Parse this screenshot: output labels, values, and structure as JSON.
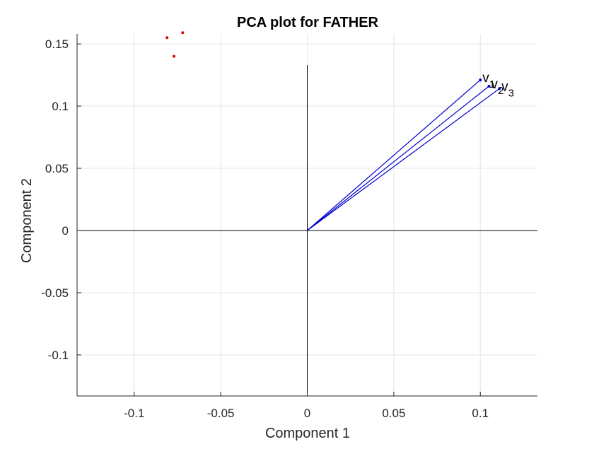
{
  "chart_data": {
    "type": "scatter",
    "title": "PCA plot for FATHER",
    "xlabel": "Component 1",
    "ylabel": "Component 2",
    "xlim": [
      -0.133,
      0.133
    ],
    "ylim": [
      -0.133,
      0.158
    ],
    "grid": true,
    "x_ticks": [
      -0.1,
      -0.05,
      0,
      0.05,
      0.1
    ],
    "x_tick_labels": [
      "-0.1",
      "-0.05",
      "0",
      "0.05",
      "0.1"
    ],
    "y_ticks": [
      -0.1,
      -0.05,
      0,
      0.05,
      0.1,
      0.15
    ],
    "y_tick_labels": [
      "-0.1",
      "-0.05",
      "0",
      "0.05",
      "0.1",
      "0.15"
    ],
    "axis_lines": {
      "x_range": [
        -0.133,
        0.133
      ],
      "y_range": [
        -0.133,
        0.133
      ]
    },
    "vectors": [
      {
        "x": 0.1,
        "y": 0.121,
        "label": "v",
        "subscript": "1"
      },
      {
        "x": 0.105,
        "y": 0.116,
        "label": "v",
        "subscript": "2"
      },
      {
        "x": 0.111,
        "y": 0.114,
        "label": "v",
        "subscript": "3"
      }
    ],
    "points": [
      {
        "x": -0.081,
        "y": 0.155
      },
      {
        "x": -0.072,
        "y": 0.159
      },
      {
        "x": -0.077,
        "y": 0.14
      }
    ],
    "colors": {
      "vector": "#0000cc",
      "points": "#e00000",
      "axis": "#000000",
      "grid": "#e6e6e6",
      "frame": "#262626"
    }
  }
}
